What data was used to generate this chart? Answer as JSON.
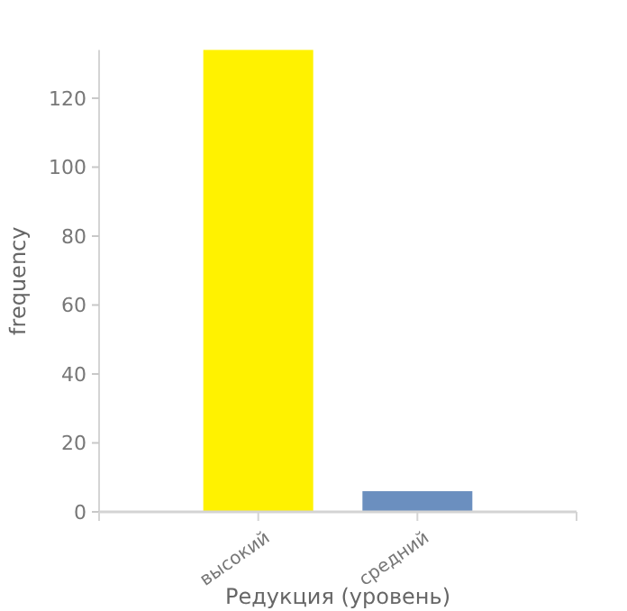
{
  "chart_data": {
    "type": "bar",
    "xlabel": "Редукция (уровень)",
    "ylabel": "frequency",
    "categories": [
      "высокий",
      "средний"
    ],
    "values": [
      134,
      6
    ],
    "colors": [
      "#fff200",
      "#6b8fbf"
    ],
    "ylim": [
      0,
      134
    ],
    "yticks": [
      0,
      20,
      40,
      60,
      80,
      100,
      120
    ],
    "grid": false
  }
}
